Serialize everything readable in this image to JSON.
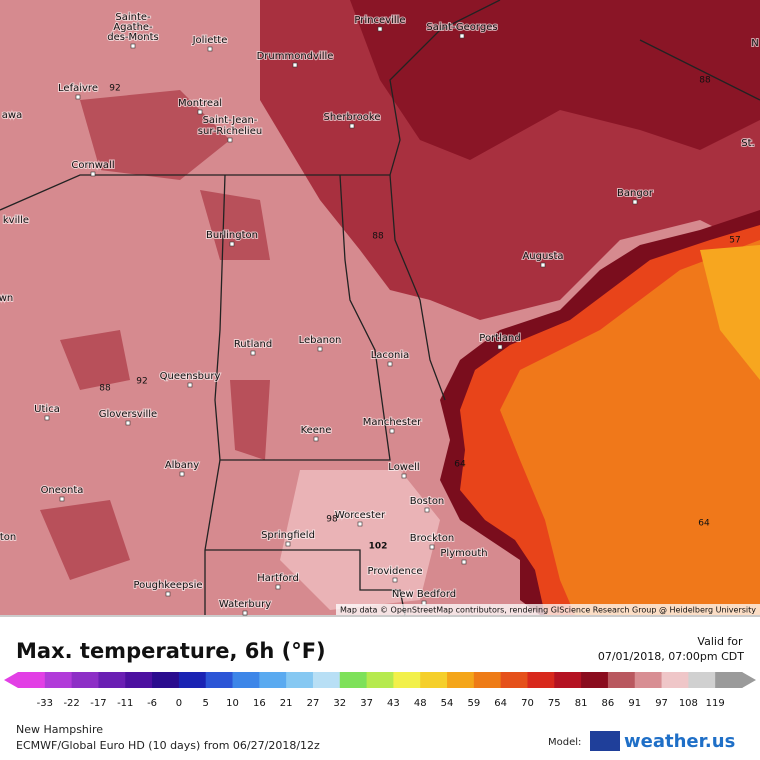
{
  "map": {
    "cities": [
      "Princeville",
      "Saint-Georges",
      "Sainte-",
      "Agathe-",
      "des-Monts",
      "Joliette",
      "Drummondville",
      "Lefaivre",
      "Montreal",
      "Saint-Jean-",
      "sur-Richelieu",
      "Sherbrooke",
      "Bangor",
      "Cornwall",
      "Burlington",
      "Augusta",
      "Rutland",
      "Lebanon",
      "Laconia",
      "Portland",
      "Queensbury",
      "Utica",
      "Gloversville",
      "Manchester",
      "Keene",
      "Albany",
      "Lowell",
      "Oneonta",
      "Boston",
      "Worcester",
      "Springfield",
      "Brockton",
      "Plymouth",
      "Poughkeepsie",
      "Hartford",
      "Providence",
      "Waterbury",
      "New Bedford",
      "awa",
      "kville",
      "wn",
      "ton",
      "N",
      "St."
    ],
    "contour_labels": [
      92,
      88,
      88,
      88,
      92,
      64,
      98,
      102,
      64,
      57
    ],
    "credit": "Map data © OpenStreetMap contributors, rendering GIScience Research Group @ Heidelberg University"
  },
  "legend": {
    "title": "Max. temperature, 6h (°F)",
    "valid_label": "Valid for",
    "valid_time": "07/01/2018, 07:00pm CDT",
    "ticks": [
      -33,
      -22,
      -17,
      -11,
      -6,
      0,
      5,
      10,
      16,
      21,
      27,
      32,
      37,
      43,
      48,
      54,
      59,
      64,
      70,
      75,
      81,
      86,
      91,
      97,
      108,
      119
    ]
  },
  "footer": {
    "region": "New Hampshire",
    "model_run": "ECMWF/Global Euro HD (10 days) from 06/27/2018/12z",
    "model_label": "Model:",
    "brand": "weather.us"
  }
}
